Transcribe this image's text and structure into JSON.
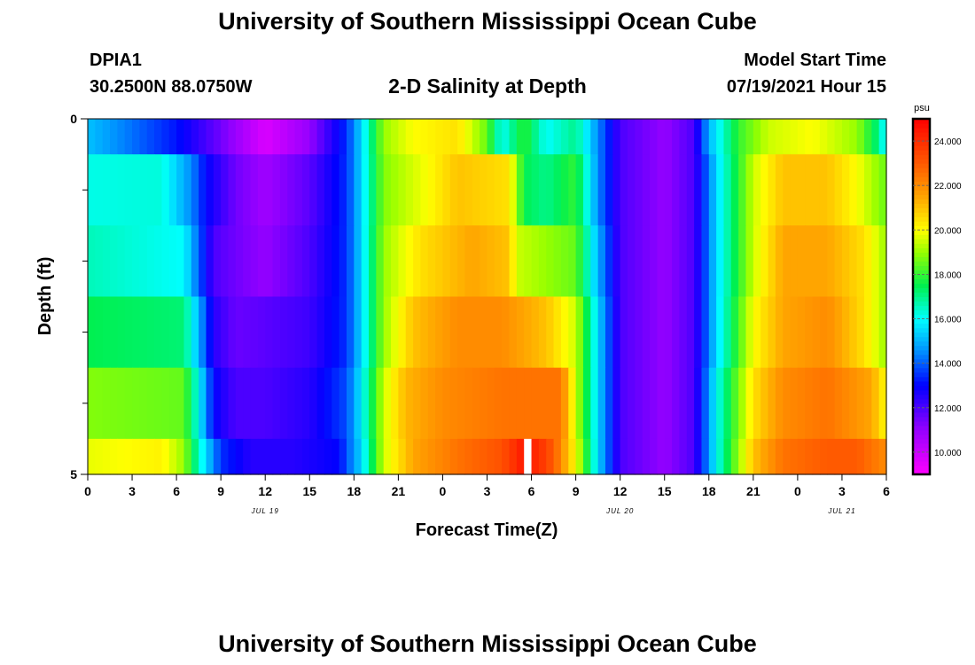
{
  "page": {
    "title": "University of Southern Mississippi Ocean Cube",
    "footer_title": "University of Southern Mississippi Ocean Cube",
    "station_id": "DPIA1",
    "station_coords": "30.2500N  88.0750W",
    "plot_title": "2-D Salinity at Depth",
    "model_start_label": "Model Start Time",
    "model_start_value": "07/19/2021 Hour 15"
  },
  "chart_data": {
    "type": "heatmap",
    "title": "2-D Salinity at Depth",
    "xlabel": "Forecast Time(Z)",
    "ylabel": "Depth (ft)",
    "y_tick_labels": [
      "0",
      "5"
    ],
    "y_range": [
      0,
      5
    ],
    "x_range_hours": [
      0,
      54
    ],
    "x_tick_labels": [
      "0",
      "3",
      "6",
      "9",
      "12",
      "15",
      "18",
      "21",
      "0",
      "3",
      "6",
      "9",
      "12",
      "15",
      "18",
      "21",
      "0",
      "3",
      "6"
    ],
    "date_labels": [
      {
        "label": "JUL 19",
        "hour": 12
      },
      {
        "label": "JUL 20",
        "hour": 36
      },
      {
        "label": "JUL 21",
        "hour": 51
      }
    ],
    "colorbar": {
      "unit": "psu",
      "min": 9,
      "max": 25,
      "tick_labels": [
        "24.000",
        "22.000",
        "20.000",
        "18.000",
        "16.000",
        "14.000",
        "12.000",
        "10.000"
      ],
      "tick_values": [
        24,
        22,
        20,
        18,
        16,
        14,
        12,
        10
      ]
    },
    "layers": [
      {
        "top": 0.0,
        "bottom": 0.5,
        "keys": [
          [
            0,
            15.2
          ],
          [
            6,
            13.2
          ],
          [
            9,
            11.5
          ],
          [
            12,
            9.7
          ],
          [
            15,
            11.0
          ],
          [
            17.5,
            13.5
          ],
          [
            18.5,
            15.5
          ],
          [
            20,
            19.0
          ],
          [
            22,
            20.0
          ],
          [
            25,
            20.5
          ],
          [
            27,
            18.5
          ],
          [
            28,
            16.0
          ],
          [
            29.5,
            18.0
          ],
          [
            31,
            16.0
          ],
          [
            33,
            17.0
          ],
          [
            34.5,
            14.5
          ],
          [
            36,
            12.0
          ],
          [
            39,
            11.0
          ],
          [
            41,
            12.0
          ],
          [
            42,
            15.0
          ],
          [
            44,
            18.0
          ],
          [
            46,
            19.5
          ],
          [
            49,
            20.0
          ],
          [
            52,
            19.0
          ],
          [
            53.5,
            17.0
          ],
          [
            54,
            15.5
          ]
        ]
      },
      {
        "top": 0.5,
        "bottom": 1.5,
        "keys": [
          [
            0,
            16.2
          ],
          [
            5,
            16.3
          ],
          [
            7,
            14.5
          ],
          [
            8,
            13.0
          ],
          [
            10,
            11.5
          ],
          [
            12,
            10.8
          ],
          [
            15,
            11.8
          ],
          [
            17.5,
            13.5
          ],
          [
            18.5,
            15.5
          ],
          [
            20,
            18.8
          ],
          [
            23,
            20.0
          ],
          [
            25,
            21.0
          ],
          [
            28.5,
            20.5
          ],
          [
            29.5,
            17.5
          ],
          [
            31,
            17.0
          ],
          [
            33,
            18.0
          ],
          [
            34.5,
            14.5
          ],
          [
            36,
            12.0
          ],
          [
            39,
            11.0
          ],
          [
            41,
            12.0
          ],
          [
            42.5,
            15.5
          ],
          [
            45,
            19.5
          ],
          [
            47,
            21.0
          ],
          [
            50,
            21.0
          ],
          [
            52,
            20.0
          ],
          [
            54,
            18.5
          ]
        ]
      },
      {
        "top": 1.5,
        "bottom": 2.5,
        "keys": [
          [
            0,
            16.6
          ],
          [
            6.5,
            16.0
          ],
          [
            7.5,
            14.0
          ],
          [
            8.5,
            12.0
          ],
          [
            10,
            11.5
          ],
          [
            12,
            11.0
          ],
          [
            15,
            12.0
          ],
          [
            17.5,
            13.5
          ],
          [
            18.5,
            15.5
          ],
          [
            20,
            19.0
          ],
          [
            22.5,
            20.5
          ],
          [
            26,
            21.5
          ],
          [
            28.5,
            21.0
          ],
          [
            29,
            19.5
          ],
          [
            31,
            19.0
          ],
          [
            33,
            18.5
          ],
          [
            34.5,
            15.0
          ],
          [
            36,
            12.0
          ],
          [
            39,
            11.0
          ],
          [
            41,
            12.0
          ],
          [
            42.5,
            15.5
          ],
          [
            45,
            19.5
          ],
          [
            47,
            21.5
          ],
          [
            50,
            21.5
          ],
          [
            52.5,
            20.5
          ],
          [
            54,
            19.0
          ]
        ]
      },
      {
        "top": 2.5,
        "bottom": 3.5,
        "keys": [
          [
            0,
            17.5
          ],
          [
            6.5,
            17.2
          ],
          [
            7.5,
            15.0
          ],
          [
            8.5,
            12.5
          ],
          [
            10,
            11.6
          ],
          [
            12,
            11.8
          ],
          [
            15,
            12.2
          ],
          [
            17.5,
            13.5
          ],
          [
            18.5,
            15.5
          ],
          [
            20,
            19.0
          ],
          [
            22,
            21.0
          ],
          [
            25,
            22.0
          ],
          [
            28,
            22.0
          ],
          [
            31,
            21.0
          ],
          [
            33,
            19.5
          ],
          [
            34.5,
            15.5
          ],
          [
            36,
            12.0
          ],
          [
            39,
            11.0
          ],
          [
            41,
            12.0
          ],
          [
            42.5,
            15.5
          ],
          [
            45,
            20.0
          ],
          [
            47,
            21.5
          ],
          [
            50,
            22.0
          ],
          [
            52.5,
            20.5
          ],
          [
            54,
            19.0
          ]
        ]
      },
      {
        "top": 3.5,
        "bottom": 4.5,
        "keys": [
          [
            0,
            18.8
          ],
          [
            6.5,
            18.5
          ],
          [
            7.5,
            16.0
          ],
          [
            8.5,
            13.0
          ],
          [
            10,
            12.0
          ],
          [
            12,
            12.0
          ],
          [
            15,
            12.5
          ],
          [
            17.5,
            13.8
          ],
          [
            18.5,
            15.8
          ],
          [
            20,
            19.5
          ],
          [
            21.5,
            21.2
          ],
          [
            24,
            22.0
          ],
          [
            28,
            22.5
          ],
          [
            32,
            22.5
          ],
          [
            32.5,
            21.0
          ],
          [
            33,
            19.5
          ],
          [
            34.5,
            15.5
          ],
          [
            36,
            12.0
          ],
          [
            39,
            11.0
          ],
          [
            41,
            12.0
          ],
          [
            42.5,
            16.0
          ],
          [
            45,
            20.5
          ],
          [
            47,
            22.0
          ],
          [
            50,
            22.5
          ],
          [
            53,
            21.5
          ],
          [
            54,
            20.0
          ]
        ]
      },
      {
        "top": 4.5,
        "bottom": 5.0,
        "keys": [
          [
            0,
            19.8
          ],
          [
            5,
            20.2
          ],
          [
            6.5,
            19.0
          ],
          [
            7.5,
            16.5
          ],
          [
            9,
            13.5
          ],
          [
            11,
            12.5
          ],
          [
            14,
            12.5
          ],
          [
            17,
            13.0
          ],
          [
            18.5,
            15.5
          ],
          [
            20,
            19.5
          ],
          [
            22,
            21.5
          ],
          [
            25,
            22.5
          ],
          [
            28,
            23.2
          ],
          [
            29.5,
            24.5
          ],
          [
            30.5,
            24.0
          ],
          [
            31.5,
            23.0
          ],
          [
            33,
            20.0
          ],
          [
            34.5,
            15.5
          ],
          [
            36,
            12.0
          ],
          [
            39,
            11.0
          ],
          [
            41,
            12.0
          ],
          [
            42.5,
            16.0
          ],
          [
            45,
            21.0
          ],
          [
            47,
            22.5
          ],
          [
            50,
            23.0
          ],
          [
            52,
            23.0
          ],
          [
            54,
            22.0
          ]
        ]
      }
    ],
    "missing_cells": [
      {
        "hour": 29.75,
        "top": 4.5,
        "bottom": 5.0
      }
    ]
  }
}
